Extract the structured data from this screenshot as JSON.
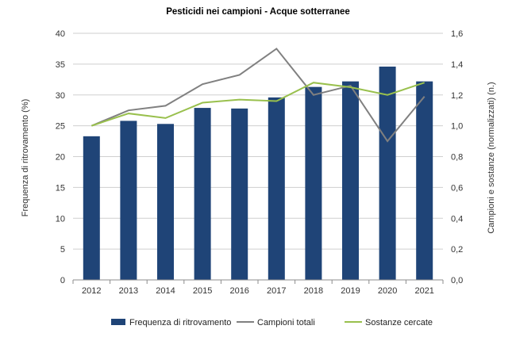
{
  "chart_data": {
    "type": "bar",
    "title": "Pesticidi nei campioni - Acque sotterranee",
    "categories": [
      "2012",
      "2013",
      "2014",
      "2015",
      "2016",
      "2017",
      "2018",
      "2019",
      "2020",
      "2021"
    ],
    "ylabel_left": "Frequenza di ritrovamento (%)",
    "ylabel_right": "Campioni e sostanze (normalizzati) (n.)",
    "ylim_left": [
      0,
      40
    ],
    "ylim_right": [
      0,
      1.6
    ],
    "y_ticks_left": [
      "0",
      "5",
      "10",
      "15",
      "20",
      "25",
      "30",
      "35",
      "40"
    ],
    "y_ticks_right": [
      "0,0",
      "0,2",
      "0,4",
      "0,6",
      "0,8",
      "1,0",
      "1,2",
      "1,4",
      "1,6"
    ],
    "grid": true,
    "legend_position": "bottom",
    "series": [
      {
        "name": "Frequenza di ritrovamento",
        "type": "bar",
        "axis": "left",
        "color": "#1f4477",
        "values": [
          23.3,
          25.8,
          25.3,
          27.9,
          27.8,
          29.6,
          31.3,
          32.2,
          34.6,
          32.2
        ]
      },
      {
        "name": "Campioni totali",
        "type": "line",
        "axis": "right",
        "color": "#808080",
        "values": [
          1.0,
          1.1,
          1.13,
          1.27,
          1.33,
          1.5,
          1.2,
          1.26,
          0.9,
          1.19
        ]
      },
      {
        "name": "Sostanze cercate",
        "type": "line",
        "axis": "right",
        "color": "#99c04d",
        "values": [
          1.0,
          1.08,
          1.05,
          1.15,
          1.17,
          1.16,
          1.28,
          1.25,
          1.2,
          1.28
        ]
      }
    ]
  }
}
